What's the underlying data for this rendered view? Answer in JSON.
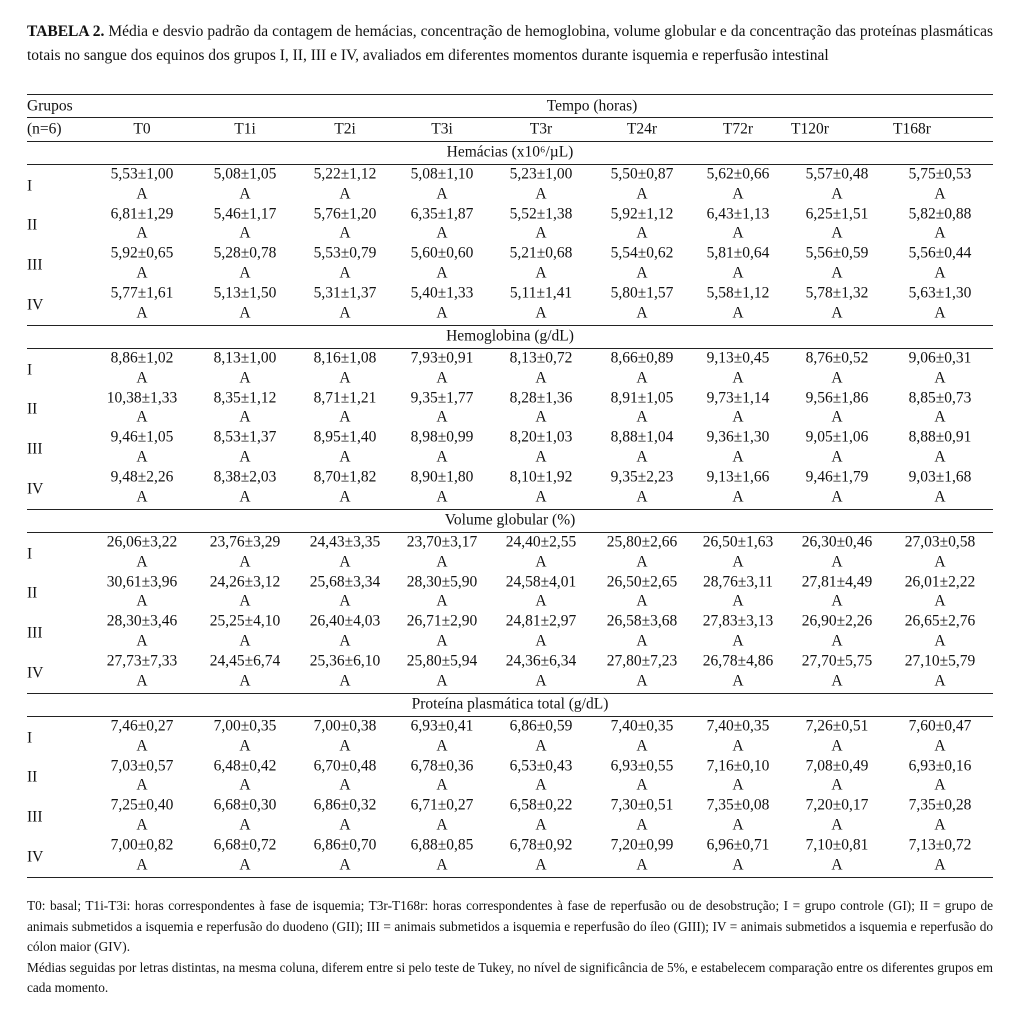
{
  "caption": {
    "label": "TABELA 2.",
    "text": "Média e desvio padrão da contagem de hemácias, concentração de hemoglobina, volume globular e da concentração das proteínas plasmáticas totais no sangue dos equinos dos grupos I, II, III e IV, avaliados em diferentes momentos durante isquemia e reperfusão intestinal"
  },
  "header": {
    "groups": "Grupos",
    "time": "Tempo (horas)",
    "n": "(n=6)",
    "columns": [
      "T0",
      "T1i",
      "T2i",
      "T3i",
      "T3r",
      "T24r",
      "T72r",
      "T120r",
      "T168r"
    ]
  },
  "sections": [
    {
      "title": "Hemácias (x10⁶/µL)",
      "rows": [
        {
          "group": "I",
          "values": [
            "5,53±1,00",
            "5,08±1,05",
            "5,22±1,12",
            "5,08±1,10",
            "5,23±1,00",
            "5,50±0,87",
            "5,62±0,66",
            "5,57±0,48",
            "5,75±0,53"
          ],
          "letters": [
            "A",
            "A",
            "A",
            "A",
            "A",
            "A",
            "A",
            "A",
            "A"
          ]
        },
        {
          "group": "II",
          "values": [
            "6,81±1,29",
            "5,46±1,17",
            "5,76±1,20",
            "6,35±1,87",
            "5,52±1,38",
            "5,92±1,12",
            "6,43±1,13",
            "6,25±1,51",
            "5,82±0,88"
          ],
          "letters": [
            "A",
            "A",
            "A",
            "A",
            "A",
            "A",
            "A",
            "A",
            "A"
          ]
        },
        {
          "group": "III",
          "values": [
            "5,92±0,65",
            "5,28±0,78",
            "5,53±0,79",
            "5,60±0,60",
            "5,21±0,68",
            "5,54±0,62",
            "5,81±0,64",
            "5,56±0,59",
            "5,56±0,44"
          ],
          "letters": [
            "A",
            "A",
            "A",
            "A",
            "A",
            "A",
            "A",
            "A",
            "A"
          ]
        },
        {
          "group": "IV",
          "values": [
            "5,77±1,61",
            "5,13±1,50",
            "5,31±1,37",
            "5,40±1,33",
            "5,11±1,41",
            "5,80±1,57",
            "5,58±1,12",
            "5,78±1,32",
            "5,63±1,30"
          ],
          "letters": [
            "A",
            "A",
            "A",
            "A",
            "A",
            "A",
            "A",
            "A",
            "A"
          ]
        }
      ]
    },
    {
      "title": "Hemoglobina (g/dL)",
      "rows": [
        {
          "group": "I",
          "values": [
            "8,86±1,02",
            "8,13±1,00",
            "8,16±1,08",
            "7,93±0,91",
            "8,13±0,72",
            "8,66±0,89",
            "9,13±0,45",
            "8,76±0,52",
            "9,06±0,31"
          ],
          "letters": [
            "A",
            "A",
            "A",
            "A",
            "A",
            "A",
            "A",
            "A",
            "A"
          ]
        },
        {
          "group": "II",
          "values": [
            "10,38±1,33",
            "8,35±1,12",
            "8,71±1,21",
            "9,35±1,77",
            "8,28±1,36",
            "8,91±1,05",
            "9,73±1,14",
            "9,56±1,86",
            "8,85±0,73"
          ],
          "letters": [
            "A",
            "A",
            "A",
            "A",
            "A",
            "A",
            "A",
            "A",
            "A"
          ]
        },
        {
          "group": "III",
          "values": [
            "9,46±1,05",
            "8,53±1,37",
            "8,95±1,40",
            "8,98±0,99",
            "8,20±1,03",
            "8,88±1,04",
            "9,36±1,30",
            "9,05±1,06",
            "8,88±0,91"
          ],
          "letters": [
            "A",
            "A",
            "A",
            "A",
            "A",
            "A",
            "A",
            "A",
            "A"
          ]
        },
        {
          "group": "IV",
          "values": [
            "9,48±2,26",
            "8,38±2,03",
            "8,70±1,82",
            "8,90±1,80",
            "8,10±1,92",
            "9,35±2,23",
            "9,13±1,66",
            "9,46±1,79",
            "9,03±1,68"
          ],
          "letters": [
            "A",
            "A",
            "A",
            "A",
            "A",
            "A",
            "A",
            "A",
            "A"
          ]
        }
      ]
    },
    {
      "title": "Volume globular (%)",
      "rows": [
        {
          "group": "I",
          "values": [
            "26,06±3,22",
            "23,76±3,29",
            "24,43±3,35",
            "23,70±3,17",
            "24,40±2,55",
            "25,80±2,66",
            "26,50±1,63",
            "26,30±0,46",
            "27,03±0,58"
          ],
          "letters": [
            "A",
            "A",
            "A",
            "A",
            "A",
            "A",
            "A",
            "A",
            "A"
          ]
        },
        {
          "group": "II",
          "values": [
            "30,61±3,96",
            "24,26±3,12",
            "25,68±3,34",
            "28,30±5,90",
            "24,58±4,01",
            "26,50±2,65",
            "28,76±3,11",
            "27,81±4,49",
            "26,01±2,22"
          ],
          "letters": [
            "A",
            "A",
            "A",
            "A",
            "A",
            "A",
            "A",
            "A",
            "A"
          ]
        },
        {
          "group": "III",
          "values": [
            "28,30±3,46",
            "25,25±4,10",
            "26,40±4,03",
            "26,71±2,90",
            "24,81±2,97",
            "26,58±3,68",
            "27,83±3,13",
            "26,90±2,26",
            "26,65±2,76"
          ],
          "letters": [
            "A",
            "A",
            "A",
            "A",
            "A",
            "A",
            "A",
            "A",
            "A"
          ]
        },
        {
          "group": "IV",
          "values": [
            "27,73±7,33",
            "24,45±6,74",
            "25,36±6,10",
            "25,80±5,94",
            "24,36±6,34",
            "27,80±7,23",
            "26,78±4,86",
            "27,70±5,75",
            "27,10±5,79"
          ],
          "letters": [
            "A",
            "A",
            "A",
            "A",
            "A",
            "A",
            "A",
            "A",
            "A"
          ]
        }
      ]
    },
    {
      "title": "Proteína plasmática total (g/dL)",
      "rows": [
        {
          "group": "I",
          "values": [
            "7,46±0,27",
            "7,00±0,35",
            "7,00±0,38",
            "6,93±0,41",
            "6,86±0,59",
            "7,40±0,35",
            "7,40±0,35",
            "7,26±0,51",
            "7,60±0,47"
          ],
          "letters": [
            "A",
            "A",
            "A",
            "A",
            "A",
            "A",
            "A",
            "A",
            "A"
          ]
        },
        {
          "group": "II",
          "values": [
            "7,03±0,57",
            "6,48±0,42",
            "6,70±0,48",
            "6,78±0,36",
            "6,53±0,43",
            "6,93±0,55",
            "7,16±0,10",
            "7,08±0,49",
            "6,93±0,16"
          ],
          "letters": [
            "A",
            "A",
            "A",
            "A",
            "A",
            "A",
            "A",
            "A",
            "A"
          ]
        },
        {
          "group": "III",
          "values": [
            "7,25±0,40",
            "6,68±0,30",
            "6,86±0,32",
            "6,71±0,27",
            "6,58±0,22",
            "7,30±0,51",
            "7,35±0,08",
            "7,20±0,17",
            "7,35±0,28"
          ],
          "letters": [
            "A",
            "A",
            "A",
            "A",
            "A",
            "A",
            "A",
            "A",
            "A"
          ]
        },
        {
          "group": "IV",
          "values": [
            "7,00±0,82",
            "6,68±0,72",
            "6,86±0,70",
            "6,88±0,85",
            "6,78±0,92",
            "7,20±0,99",
            "6,96±0,71",
            "7,10±0,81",
            "7,13±0,72"
          ],
          "letters": [
            "A",
            "A",
            "A",
            "A",
            "A",
            "A",
            "A",
            "A",
            "A"
          ]
        }
      ]
    }
  ],
  "footnotes": [
    "T0: basal; T1i-T3i: horas correspondentes à fase de isquemia; T3r-T168r: horas correspondentes à fase de reperfusão ou de desobstrução; I = grupo controle (GI); II = grupo de animais submetidos a isquemia e reperfusão do duodeno (GII); III = animais submetidos a isquemia e reperfusão do íleo (GIII); IV = animais submetidos a isquemia e reperfusão do cólon maior (GIV).",
    "Médias seguidas por letras distintas, na mesma coluna, diferem entre si pelo teste de Tukey, no nível de significância de 5%, e estabelecem comparação entre os diferentes grupos em cada momento."
  ]
}
